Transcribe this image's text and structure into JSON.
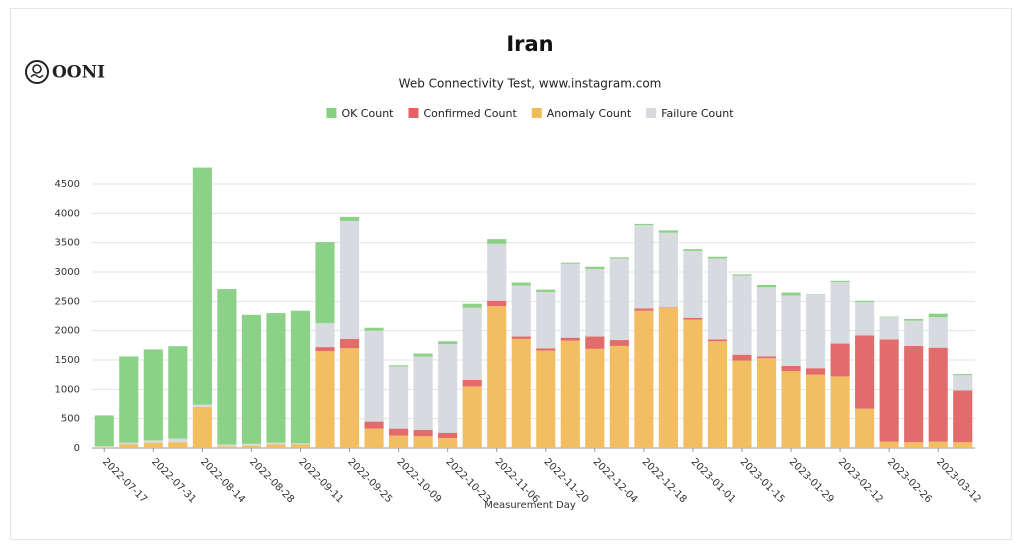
{
  "brand": "OONI",
  "chart_data": {
    "type": "stacked_bar",
    "title": "Iran",
    "subtitle": "Web Connectivity Test, www.instagram.com",
    "x_label": "Measurement Day",
    "categories": [
      "2022-07-17",
      null,
      "2022-07-31",
      null,
      "2022-08-14",
      null,
      "2022-08-28",
      null,
      "2022-09-11",
      null,
      "2022-09-25",
      null,
      "2022-10-09",
      null,
      "2022-10-23",
      null,
      "2022-11-06",
      null,
      "2022-11-20",
      null,
      "2022-12-04",
      null,
      "2022-12-18",
      null,
      "2023-01-01",
      null,
      "2023-01-15",
      null,
      "2023-01-29",
      null,
      "2023-02-12",
      null,
      "2023-02-26",
      null,
      "2023-03-12",
      null
    ],
    "series": [
      {
        "name": "OK Count",
        "color": "#86d07f",
        "values": [
          525,
          1470,
          1550,
          1575,
          4040,
          2650,
          2200,
          2210,
          2260,
          1380,
          70,
          50,
          20,
          50,
          50,
          70,
          80,
          50,
          40,
          20,
          40,
          20,
          20,
          40,
          30,
          30,
          20,
          40,
          50,
          10,
          20,
          20,
          10,
          30,
          60,
          20
        ]
      },
      {
        "name": "Confirmed Count",
        "color": "#e06464",
        "values": [
          0,
          0,
          0,
          0,
          0,
          0,
          0,
          0,
          0,
          70,
          160,
          120,
          120,
          110,
          90,
          110,
          90,
          40,
          40,
          50,
          210,
          100,
          40,
          10,
          30,
          30,
          100,
          30,
          90,
          110,
          560,
          1250,
          1740,
          1640,
          1600,
          880
        ]
      },
      {
        "name": "Anomaly Count",
        "color": "#f2bb5a",
        "values": [
          10,
          60,
          90,
          100,
          700,
          30,
          40,
          60,
          60,
          1650,
          1700,
          330,
          210,
          200,
          170,
          1050,
          2420,
          1860,
          1660,
          1830,
          1690,
          1740,
          2340,
          2390,
          2190,
          1820,
          1490,
          1530,
          1310,
          1250,
          1220,
          670,
          110,
          100,
          110,
          100
        ]
      },
      {
        "name": "Failure Count",
        "color": "#d5d8dd",
        "values": [
          20,
          30,
          40,
          60,
          40,
          30,
          30,
          30,
          20,
          410,
          2010,
          1550,
          1060,
          1250,
          1510,
          1230,
          970,
          870,
          960,
          1260,
          1150,
          1390,
          1420,
          1270,
          1140,
          1380,
          1350,
          1180,
          1200,
          1250,
          1050,
          570,
          380,
          430,
          520,
          260
        ]
      }
    ],
    "stack_order": [
      "Anomaly Count",
      "Confirmed Count",
      "Failure Count",
      "OK Count"
    ],
    "ylim": [
      0,
      4800
    ],
    "yticks": [
      0,
      500,
      1000,
      1500,
      2000,
      2500,
      3000,
      3500,
      4000,
      4500
    ],
    "grid": true,
    "legend": "top"
  }
}
